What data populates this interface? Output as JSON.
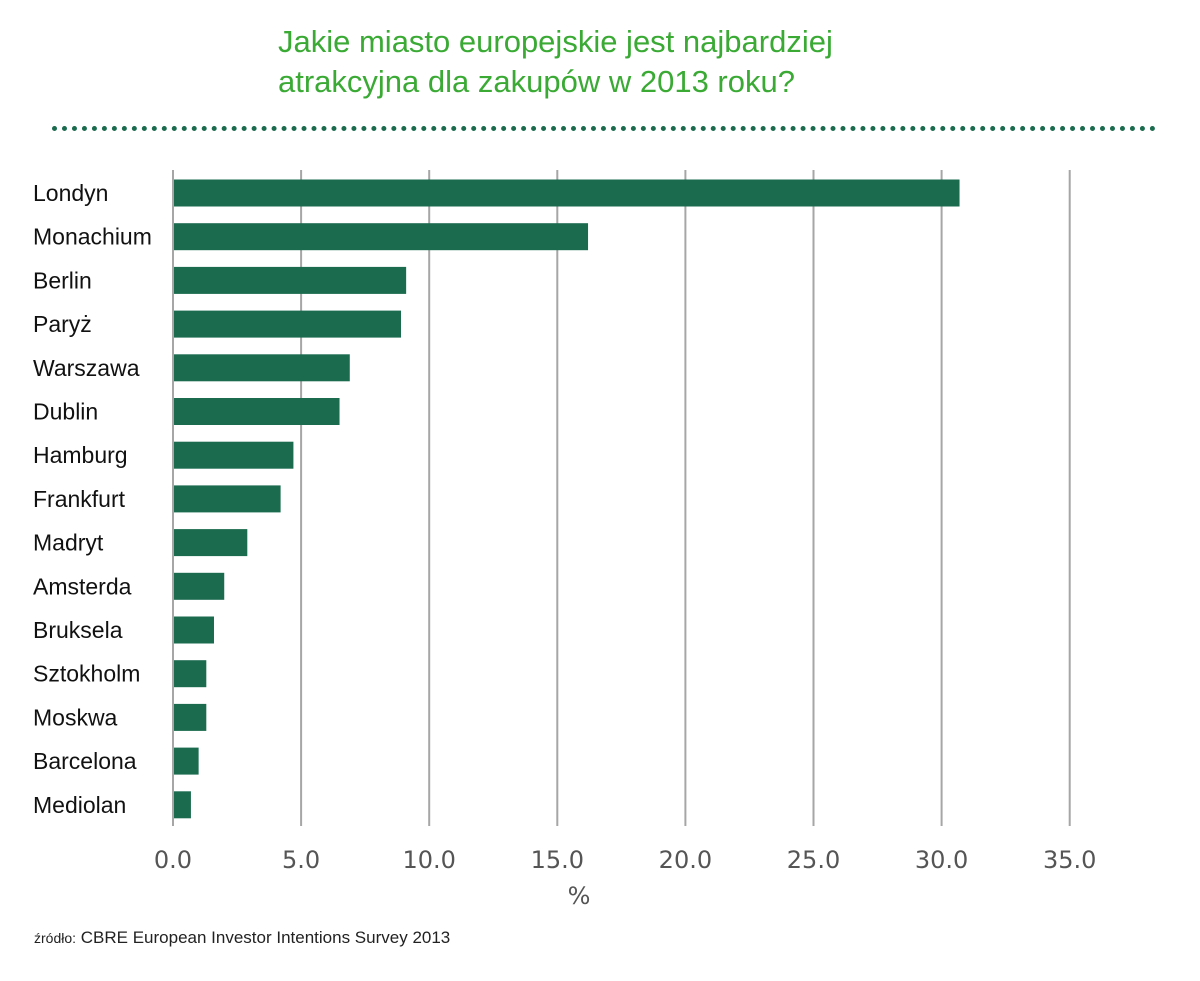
{
  "chart_data": {
    "type": "bar",
    "orientation": "horizontal",
    "title_lines": [
      "Jakie miasto europejskie jest najbardziej",
      "atrakcyjna dla zakupów w 2013 roku?"
    ],
    "categories": [
      "Londyn",
      "Monachium",
      "Berlin",
      "Paryż",
      "Warszawa",
      "Dublin",
      "Hamburg",
      "Frankfurt",
      "Madryt",
      "Amsterda",
      "Bruksela",
      "Sztokholm",
      "Moskwa",
      "Barcelona",
      "Mediolan"
    ],
    "values": [
      30.7,
      16.2,
      9.1,
      8.9,
      6.9,
      6.5,
      4.7,
      4.2,
      2.9,
      2.0,
      1.6,
      1.3,
      1.3,
      1.0,
      0.7
    ],
    "xlabel": "%",
    "xlim": [
      0,
      35
    ],
    "xticks": [
      "0.0",
      "5.0",
      "10.0",
      "15.0",
      "20.0",
      "25.0",
      "30.0",
      "35.0"
    ],
    "grid": "vertical",
    "source_prefix": "źródło:",
    "source_text": "CBRE European Investor Intentions Survey 2013"
  },
  "colors": {
    "title": "#3aaa35",
    "bar": "#1b6b4f",
    "grid": "#a6a6a6"
  }
}
